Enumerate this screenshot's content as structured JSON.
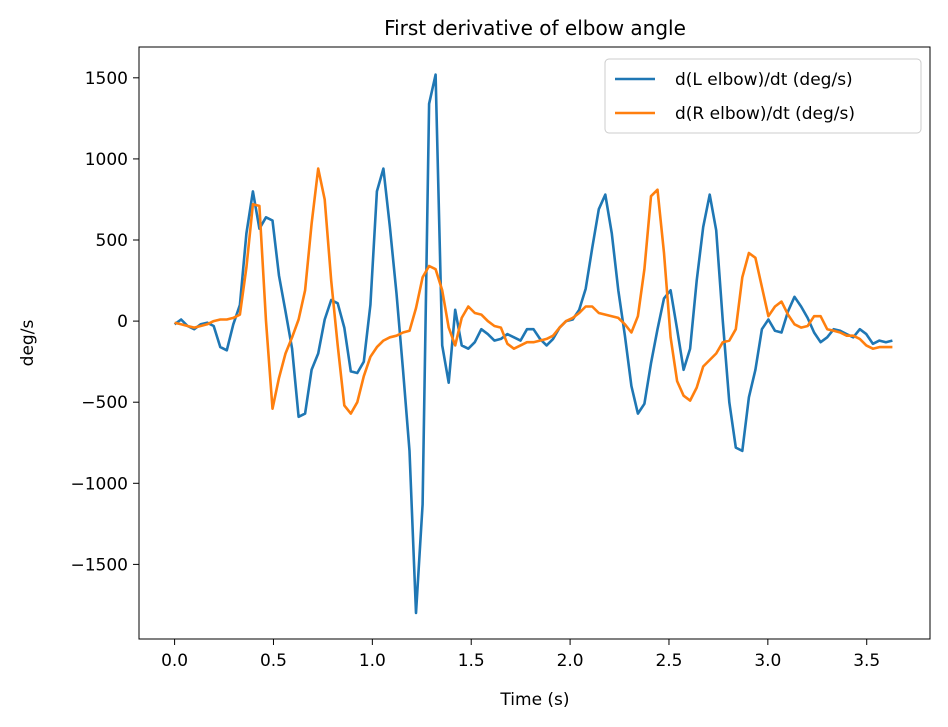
{
  "chart_data": {
    "type": "line",
    "title": "First derivative of elbow angle",
    "xlabel": "Time (s)",
    "ylabel": "deg/s",
    "xlim": [
      -0.18,
      3.82
    ],
    "ylim": [
      -1960,
      1690
    ],
    "xticks": [
      0.0,
      0.5,
      1.0,
      1.5,
      2.0,
      2.5,
      3.0,
      3.5
    ],
    "xtick_labels": [
      "0.0",
      "0.5",
      "1.0",
      "1.5",
      "2.0",
      "2.5",
      "3.0",
      "3.5"
    ],
    "yticks": [
      -1500,
      -1000,
      -500,
      0,
      500,
      1000,
      1500
    ],
    "ytick_labels": [
      "−1500",
      "−1000",
      "−500",
      "0",
      "500",
      "1000",
      "1500"
    ],
    "grid": false,
    "legend": "top-right",
    "series": [
      {
        "name": "d(L elbow)/dt (deg/s)",
        "color": "#1f77b4",
        "x": [
          0.0,
          0.033,
          0.066,
          0.099,
          0.132,
          0.165,
          0.198,
          0.231,
          0.264,
          0.297,
          0.33,
          0.363,
          0.396,
          0.429,
          0.462,
          0.495,
          0.528,
          0.561,
          0.594,
          0.627,
          0.66,
          0.693,
          0.726,
          0.759,
          0.792,
          0.825,
          0.858,
          0.891,
          0.924,
          0.957,
          0.99,
          1.023,
          1.056,
          1.089,
          1.122,
          1.155,
          1.188,
          1.221,
          1.254,
          1.287,
          1.32,
          1.353,
          1.386,
          1.419,
          1.452,
          1.485,
          1.518,
          1.551,
          1.584,
          1.617,
          1.65,
          1.683,
          1.716,
          1.749,
          1.782,
          1.815,
          1.848,
          1.881,
          1.914,
          1.947,
          1.98,
          2.013,
          2.046,
          2.079,
          2.112,
          2.145,
          2.178,
          2.211,
          2.244,
          2.277,
          2.31,
          2.343,
          2.376,
          2.409,
          2.442,
          2.475,
          2.508,
          2.541,
          2.574,
          2.607,
          2.64,
          2.673,
          2.706,
          2.739,
          2.772,
          2.805,
          2.838,
          2.871,
          2.904,
          2.937,
          2.97,
          3.003,
          3.036,
          3.069,
          3.102,
          3.135,
          3.168,
          3.201,
          3.234,
          3.267,
          3.3,
          3.333,
          3.366,
          3.399,
          3.432,
          3.465,
          3.498,
          3.531,
          3.564,
          3.597,
          3.63
        ],
        "y": [
          -20,
          10,
          -30,
          -50,
          -20,
          -10,
          -30,
          -160,
          -180,
          -20,
          100,
          540,
          800,
          570,
          640,
          620,
          280,
          60,
          -170,
          -590,
          -570,
          -300,
          -200,
          10,
          130,
          110,
          -40,
          -310,
          -320,
          -250,
          100,
          800,
          940,
          580,
          170,
          -300,
          -800,
          -1800,
          -1130,
          1340,
          1520,
          -150,
          -380,
          70,
          -150,
          -170,
          -130,
          -50,
          -80,
          -120,
          -110,
          -80,
          -100,
          -120,
          -50,
          -50,
          -110,
          -150,
          -110,
          -40,
          0,
          10,
          70,
          200,
          450,
          690,
          780,
          540,
          190,
          -90,
          -400,
          -570,
          -510,
          -260,
          -50,
          140,
          190,
          -50,
          -300,
          -170,
          250,
          580,
          780,
          560,
          0,
          -500,
          -780,
          -800,
          -470,
          -300,
          -50,
          10,
          -60,
          -70,
          60,
          150,
          90,
          20,
          -70,
          -130,
          -100,
          -50,
          -60,
          -80,
          -100,
          -50,
          -80,
          -140,
          -120,
          -130,
          -120
        ]
      },
      {
        "name": "d(R elbow)/dt (deg/s)",
        "color": "#ff7f0e",
        "x": [
          0.0,
          0.033,
          0.066,
          0.099,
          0.132,
          0.165,
          0.198,
          0.231,
          0.264,
          0.297,
          0.33,
          0.363,
          0.396,
          0.429,
          0.462,
          0.495,
          0.528,
          0.561,
          0.594,
          0.627,
          0.66,
          0.693,
          0.726,
          0.759,
          0.792,
          0.825,
          0.858,
          0.891,
          0.924,
          0.957,
          0.99,
          1.023,
          1.056,
          1.089,
          1.122,
          1.155,
          1.188,
          1.221,
          1.254,
          1.287,
          1.32,
          1.353,
          1.386,
          1.419,
          1.452,
          1.485,
          1.518,
          1.551,
          1.584,
          1.617,
          1.65,
          1.683,
          1.716,
          1.749,
          1.782,
          1.815,
          1.848,
          1.881,
          1.914,
          1.947,
          1.98,
          2.013,
          2.046,
          2.079,
          2.112,
          2.145,
          2.178,
          2.211,
          2.244,
          2.277,
          2.31,
          2.343,
          2.376,
          2.409,
          2.442,
          2.475,
          2.508,
          2.541,
          2.574,
          2.607,
          2.64,
          2.673,
          2.706,
          2.739,
          2.772,
          2.805,
          2.838,
          2.871,
          2.904,
          2.937,
          2.97,
          3.003,
          3.036,
          3.069,
          3.102,
          3.135,
          3.168,
          3.201,
          3.234,
          3.267,
          3.3,
          3.333,
          3.366,
          3.399,
          3.432,
          3.465,
          3.498,
          3.531,
          3.564,
          3.597,
          3.63
        ],
        "y": [
          -10,
          -20,
          -30,
          -40,
          -30,
          -20,
          0,
          10,
          10,
          20,
          40,
          330,
          720,
          710,
          0,
          -540,
          -350,
          -200,
          -100,
          10,
          190,
          600,
          940,
          750,
          250,
          -150,
          -520,
          -570,
          -500,
          -340,
          -220,
          -160,
          -120,
          -100,
          -90,
          -70,
          -60,
          80,
          270,
          340,
          320,
          190,
          -40,
          -150,
          20,
          90,
          50,
          40,
          0,
          -30,
          -40,
          -140,
          -170,
          -150,
          -130,
          -130,
          -120,
          -110,
          -90,
          -40,
          0,
          20,
          50,
          90,
          90,
          50,
          40,
          30,
          20,
          -20,
          -70,
          30,
          320,
          770,
          810,
          420,
          -100,
          -370,
          -460,
          -490,
          -410,
          -280,
          -240,
          -200,
          -130,
          -120,
          -50,
          270,
          420,
          390,
          210,
          30,
          90,
          120,
          40,
          -20,
          -40,
          -30,
          30,
          30,
          -50,
          -60,
          -70,
          -90,
          -90,
          -110,
          -150,
          -170,
          -160,
          -160,
          -160
        ]
      }
    ]
  }
}
